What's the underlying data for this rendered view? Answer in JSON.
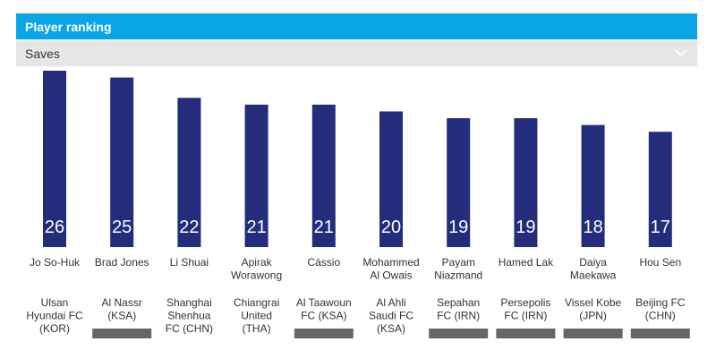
{
  "header": {
    "title": "Player ranking"
  },
  "metric_select": {
    "selected": "Saves"
  },
  "colors": {
    "header": "#0aa5e6",
    "bar": "#232d7c",
    "placeholder": "#666666"
  },
  "chart_data": {
    "type": "bar",
    "title": "",
    "categories": [
      "Jo So-Huk",
      "Brad Jones",
      "Li Shuai",
      "Apirak Worawong",
      "Cássio",
      "Mohammed Al Owais",
      "Payam Niazmand",
      "Hamed Lak",
      "Daiya Maekawa",
      "Hou Sen"
    ],
    "player_lines": [
      [
        "Jo So-Huk"
      ],
      [
        "Brad Jones"
      ],
      [
        "Li Shuai"
      ],
      [
        "Apirak",
        "Worawong"
      ],
      [
        "Cássio"
      ],
      [
        "Mohammed",
        "Al Owais"
      ],
      [
        "Payam",
        "Niazmand"
      ],
      [
        "Hamed Lak"
      ],
      [
        "Daiya",
        "Maekawa"
      ],
      [
        "Hou Sen"
      ]
    ],
    "club_lines": [
      [
        "Ulsan",
        "Hyundai FC",
        "(KOR)"
      ],
      [
        "Al Nassr",
        "(KSA)"
      ],
      [
        "Shanghai",
        "Shenhua",
        "FC (CHN)"
      ],
      [
        "Chiangrai",
        "United",
        "(THA)"
      ],
      [
        "Al Taawoun",
        "FC (KSA)"
      ],
      [
        "Al Ahli",
        "Saudi FC",
        "(KSA)"
      ],
      [
        "Sepahan",
        "FC (IRN)"
      ],
      [
        "Persepolis",
        "FC (IRN)"
      ],
      [
        "Vissel Kobe",
        "(JPN)"
      ],
      [
        "Beijing FC",
        "(CHN)"
      ]
    ],
    "placeholder_bars": [
      false,
      true,
      false,
      false,
      true,
      false,
      true,
      true,
      true,
      true
    ],
    "series": [
      {
        "values": [
          26,
          25,
          22,
          21,
          21,
          20,
          19,
          19,
          18,
          17
        ]
      }
    ]
  }
}
